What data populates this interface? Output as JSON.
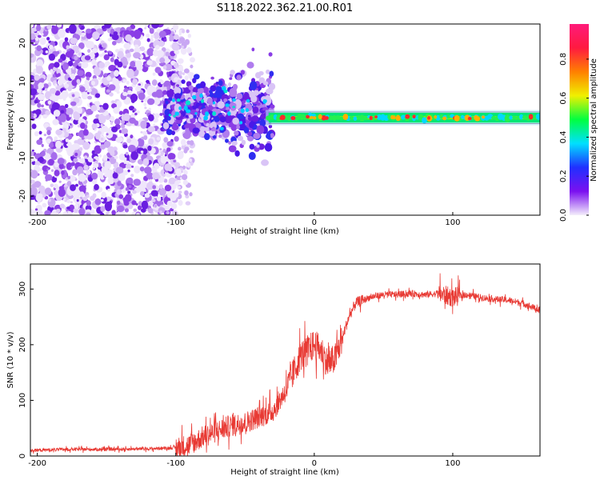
{
  "title": "S118.2022.362.21.00.R01",
  "colors": {
    "signal": "#6a1ee0",
    "band": "#00e676",
    "band_core": "#ff2a2a",
    "snr_line": "#e83a34"
  },
  "colorbar": {
    "label": "Normalized spectral amplitude",
    "ticks": [
      "0.0",
      "0.2",
      "0.4",
      "0.6",
      "0.8"
    ],
    "tick_values": [
      0.0,
      0.2,
      0.4,
      0.6,
      0.8
    ],
    "range": [
      0,
      0.98
    ],
    "colormap": [
      "#f3eefb",
      "#7b10f0",
      "#2030ff",
      "#00e0ff",
      "#00ff40",
      "#f0f000",
      "#ff8000",
      "#ff1a40",
      "#ff1a7a"
    ]
  },
  "chart_data": [
    {
      "type": "heatmap",
      "xlabel": "Height of straight line (km)",
      "ylabel": "Frequency (Hz)",
      "xlim": [
        -205,
        163
      ],
      "ylim": [
        -25,
        25
      ],
      "x_ticks": [
        -200,
        -100,
        0,
        100
      ],
      "x_tick_labels": [
        "-200",
        "-100",
        "0",
        "100"
      ],
      "y_ticks": [
        -20,
        -10,
        0,
        10,
        20
      ],
      "y_tick_labels": [
        "-20",
        "-10",
        "0",
        "10",
        "20"
      ],
      "band_center_hz": 0.5
    },
    {
      "type": "line",
      "xlabel": "Height of straight line (km)",
      "ylabel": "SNR (10 * v/v)",
      "xlim": [
        -205,
        163
      ],
      "ylim": [
        0,
        345
      ],
      "x_ticks": [
        -200,
        -100,
        0,
        100
      ],
      "x_tick_labels": [
        "-200",
        "-100",
        "0",
        "100"
      ],
      "y_ticks": [
        0,
        100,
        200,
        300
      ],
      "y_tick_labels": [
        "0",
        "100",
        "200",
        "300"
      ],
      "series": [
        {
          "x": [
            -205,
            -180,
            -150,
            -120,
            -100,
            -90,
            -80,
            -70,
            -60,
            -50,
            -40,
            -30,
            -20,
            -15,
            -10,
            -5,
            0,
            5,
            10,
            15,
            20,
            25,
            30,
            40,
            50,
            60,
            70,
            80,
            90,
            100,
            110,
            120,
            130,
            140,
            150,
            160,
            163
          ],
          "y": [
            10,
            12,
            12,
            13,
            15,
            20,
            35,
            45,
            55,
            60,
            70,
            80,
            120,
            150,
            180,
            190,
            200,
            190,
            165,
            175,
            210,
            250,
            275,
            285,
            290,
            290,
            292,
            290,
            292,
            285,
            290,
            285,
            282,
            280,
            275,
            265,
            260
          ]
        }
      ]
    }
  ]
}
